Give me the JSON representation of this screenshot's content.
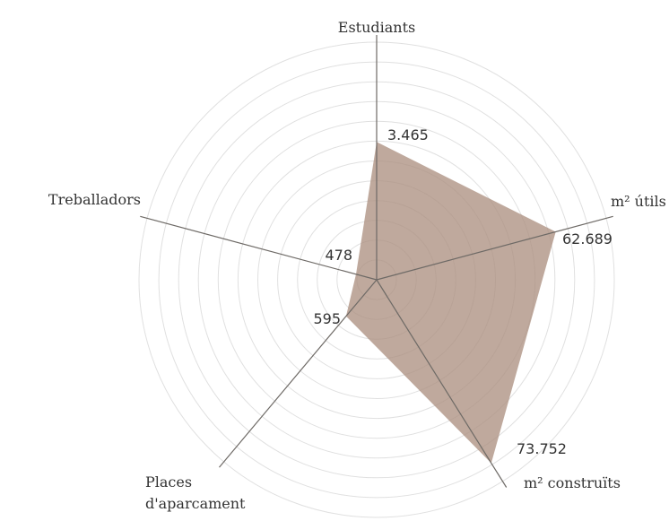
{
  "chart_data": {
    "type": "radar",
    "title": "",
    "axes": [
      {
        "label": "Estudiants",
        "value": 3465,
        "value_label": "3.465"
      },
      {
        "label": "m² útils",
        "value": 62689,
        "value_label": "62.689"
      },
      {
        "label": "m² construïts",
        "value": 73752,
        "value_label": "73.752"
      },
      {
        "label": "Places\nd'aparcament",
        "value": 595,
        "value_label": "595"
      },
      {
        "label": "Treballadors",
        "value": 478,
        "value_label": "478"
      }
    ],
    "normalized_radius": [
      0.58,
      0.78,
      0.91,
      0.2,
      0.09
    ],
    "rings": 12,
    "grid": true,
    "fill_color": "#ad9181"
  }
}
